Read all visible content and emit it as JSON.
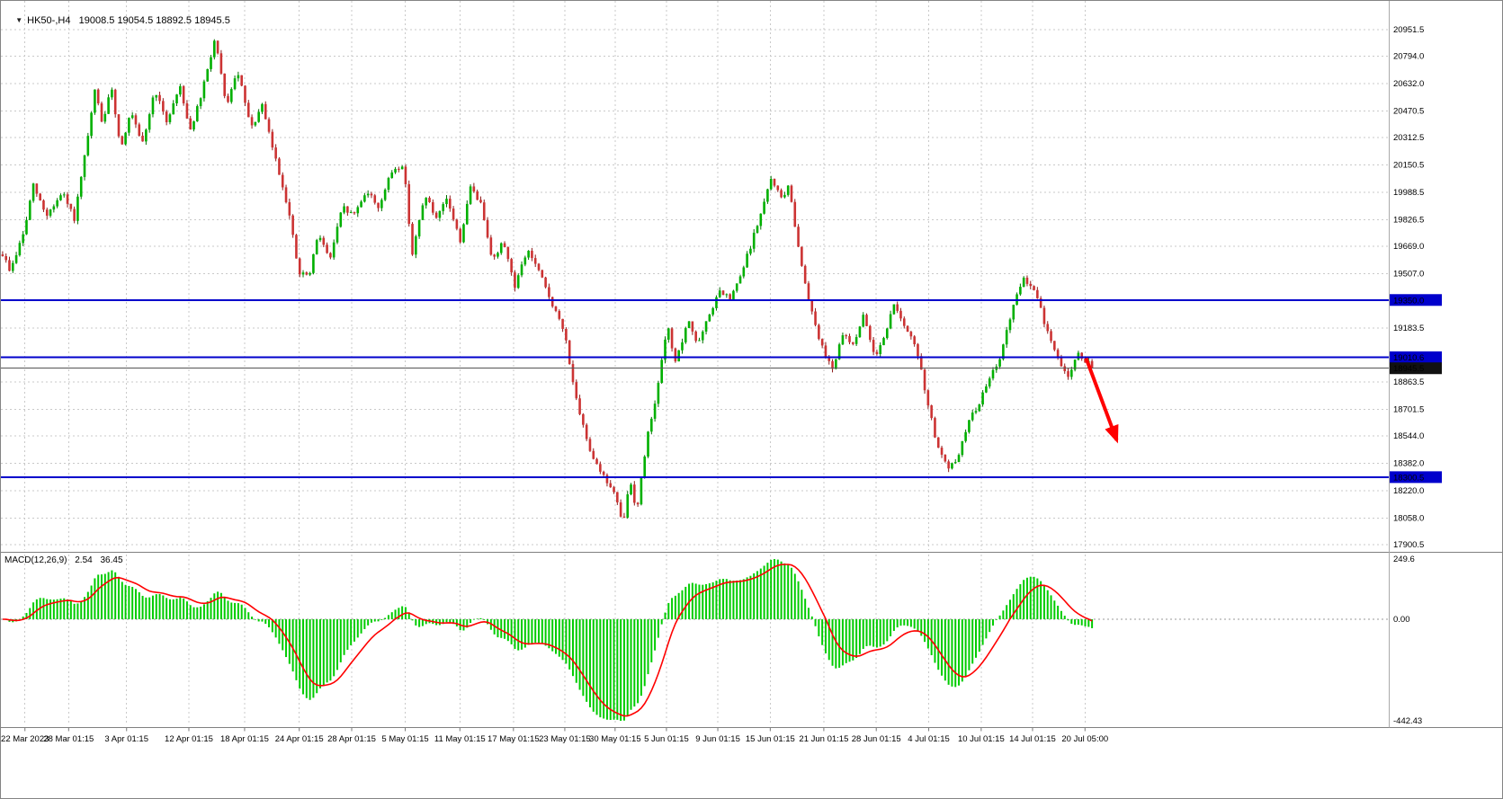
{
  "header": {
    "symbol": "HK50-",
    "timeframe": "H4",
    "title_line": "HK50-,H4   19008.5 19054.5 18892.5 18945.5"
  },
  "chart_data": {
    "type": "candlestick",
    "title": "HK50-,H4",
    "current_bar": {
      "open": 19008.5,
      "high": 19054.5,
      "low": 18892.5,
      "close": 18945.5
    },
    "price_axis": {
      "ticks": [
        20951.5,
        20794.0,
        20632.0,
        20470.5,
        20312.5,
        20150.5,
        19988.5,
        19826.5,
        19669.0,
        19507.0,
        19183.5,
        18863.5,
        18701.5,
        18544.0,
        18382.0,
        18220.0,
        18058.0,
        17900.5
      ],
      "tags": [
        {
          "value": 19350.0,
          "label": "19350.0",
          "kind": "hline"
        },
        {
          "value": 19010.6,
          "label": "19010.6",
          "kind": "hline"
        },
        {
          "value": 18945.5,
          "label": "18945.5",
          "kind": "current-price"
        },
        {
          "value": 18300.5,
          "label": "18300.5",
          "kind": "hline"
        }
      ]
    },
    "hlines": [
      {
        "value": 19350.0,
        "color": "#0000CC"
      },
      {
        "value": 19010.6,
        "color": "#0000CC"
      },
      {
        "value": 18300.5,
        "color": "#0000CC"
      }
    ],
    "current_price": {
      "value": 18945.5,
      "line_color": "#555555",
      "tag_color": "#111111"
    },
    "x_axis": {
      "labels": [
        {
          "text": "22 Mar 2023",
          "f": 0.022
        },
        {
          "text": "28 Mar 01:15",
          "f": 0.062
        },
        {
          "text": "3 Apr 01:15",
          "f": 0.115
        },
        {
          "text": "12 Apr 01:15",
          "f": 0.172
        },
        {
          "text": "18 Apr 01:15",
          "f": 0.223
        },
        {
          "text": "24 Apr 01:15",
          "f": 0.273
        },
        {
          "text": "28 Apr 01:15",
          "f": 0.321
        },
        {
          "text": "5 May 01:15",
          "f": 0.37
        },
        {
          "text": "11 May 01:15",
          "f": 0.42
        },
        {
          "text": "17 May 01:15",
          "f": 0.469
        },
        {
          "text": "23 May 01:15",
          "f": 0.516
        },
        {
          "text": "30 May 01:15",
          "f": 0.562
        },
        {
          "text": "5 Jun 01:15",
          "f": 0.609
        },
        {
          "text": "9 Jun 01:15",
          "f": 0.656
        },
        {
          "text": "15 Jun 01:15",
          "f": 0.704
        },
        {
          "text": "21 Jun 01:15",
          "f": 0.753
        },
        {
          "text": "28 Jun 01:15",
          "f": 0.801
        },
        {
          "text": "4 Jul 01:15",
          "f": 0.849
        },
        {
          "text": "10 Jul 01:15",
          "f": 0.897
        },
        {
          "text": "14 Jul 01:15",
          "f": 0.944
        },
        {
          "text": "20 Jul 05:00",
          "f": 0.992
        }
      ]
    },
    "price_path": [
      [
        0.0,
        19620
      ],
      [
        0.007,
        19520
      ],
      [
        0.02,
        19760
      ],
      [
        0.028,
        20030
      ],
      [
        0.04,
        19850
      ],
      [
        0.055,
        19980
      ],
      [
        0.066,
        19830
      ],
      [
        0.078,
        20300
      ],
      [
        0.085,
        20600
      ],
      [
        0.092,
        20380
      ],
      [
        0.1,
        20620
      ],
      [
        0.108,
        20250
      ],
      [
        0.118,
        20460
      ],
      [
        0.128,
        20260
      ],
      [
        0.14,
        20600
      ],
      [
        0.15,
        20400
      ],
      [
        0.163,
        20620
      ],
      [
        0.172,
        20350
      ],
      [
        0.182,
        20550
      ],
      [
        0.195,
        20900
      ],
      [
        0.205,
        20500
      ],
      [
        0.216,
        20700
      ],
      [
        0.228,
        20360
      ],
      [
        0.238,
        20500
      ],
      [
        0.252,
        20150
      ],
      [
        0.262,
        19900
      ],
      [
        0.272,
        19500
      ],
      [
        0.282,
        19500
      ],
      [
        0.29,
        19760
      ],
      [
        0.3,
        19580
      ],
      [
        0.312,
        19900
      ],
      [
        0.322,
        19850
      ],
      [
        0.334,
        20000
      ],
      [
        0.345,
        19900
      ],
      [
        0.358,
        20120
      ],
      [
        0.368,
        20150
      ],
      [
        0.376,
        19620
      ],
      [
        0.388,
        19980
      ],
      [
        0.398,
        19820
      ],
      [
        0.408,
        19950
      ],
      [
        0.42,
        19700
      ],
      [
        0.43,
        20030
      ],
      [
        0.44,
        19900
      ],
      [
        0.45,
        19580
      ],
      [
        0.46,
        19700
      ],
      [
        0.47,
        19430
      ],
      [
        0.482,
        19650
      ],
      [
        0.492,
        19520
      ],
      [
        0.503,
        19350
      ],
      [
        0.516,
        19150
      ],
      [
        0.528,
        18700
      ],
      [
        0.54,
        18450
      ],
      [
        0.552,
        18300
      ],
      [
        0.562,
        18200
      ],
      [
        0.569,
        18010
      ],
      [
        0.576,
        18280
      ],
      [
        0.582,
        18100
      ],
      [
        0.592,
        18550
      ],
      [
        0.602,
        18850
      ],
      [
        0.61,
        19200
      ],
      [
        0.618,
        18980
      ],
      [
        0.63,
        19230
      ],
      [
        0.638,
        19080
      ],
      [
        0.65,
        19280
      ],
      [
        0.658,
        19400
      ],
      [
        0.668,
        19350
      ],
      [
        0.678,
        19500
      ],
      [
        0.688,
        19700
      ],
      [
        0.697,
        19880
      ],
      [
        0.706,
        20080
      ],
      [
        0.714,
        19950
      ],
      [
        0.722,
        20020
      ],
      [
        0.732,
        19600
      ],
      [
        0.742,
        19300
      ],
      [
        0.753,
        19050
      ],
      [
        0.762,
        18950
      ],
      [
        0.772,
        19150
      ],
      [
        0.78,
        19080
      ],
      [
        0.79,
        19250
      ],
      [
        0.801,
        19020
      ],
      [
        0.81,
        19150
      ],
      [
        0.819,
        19340
      ],
      [
        0.828,
        19180
      ],
      [
        0.838,
        19080
      ],
      [
        0.849,
        18750
      ],
      [
        0.858,
        18480
      ],
      [
        0.868,
        18340
      ],
      [
        0.877,
        18420
      ],
      [
        0.886,
        18620
      ],
      [
        0.897,
        18750
      ],
      [
        0.906,
        18880
      ],
      [
        0.916,
        19020
      ],
      [
        0.928,
        19320
      ],
      [
        0.938,
        19480
      ],
      [
        0.948,
        19400
      ],
      [
        0.958,
        19180
      ],
      [
        0.968,
        19010
      ],
      [
        0.978,
        18900
      ],
      [
        0.988,
        19030
      ],
      [
        1.0,
        18950
      ]
    ],
    "candle_gen": {
      "count": 320,
      "seed": 9,
      "noise": 34,
      "wick": 22
    },
    "colors": {
      "up_fill": "#00B000",
      "up_line": "#007000",
      "down_fill": "#CC3333",
      "down_line": "#8B1A1A",
      "grid": "#C9C9C9",
      "macd_hist": "#00CC00",
      "macd_signal": "#FF0000",
      "hline": "#0000CC",
      "arrow": "#FF0000"
    },
    "trend_arrow": {
      "from_f": 0.993,
      "from_price": 19005,
      "to_f": 1.021,
      "to_price": 18520,
      "color": "#FF0000"
    },
    "macd": {
      "label": "MACD(12,26,9)",
      "value_main": "2.54",
      "value_signal": "36.45",
      "fast": 12,
      "slow": 26,
      "signal": 9,
      "axis": {
        "max": 249.6,
        "zero": 0.0,
        "min": -442.43
      },
      "axis_labels": [
        "249.6",
        "0.00",
        "-442.43"
      ]
    }
  }
}
